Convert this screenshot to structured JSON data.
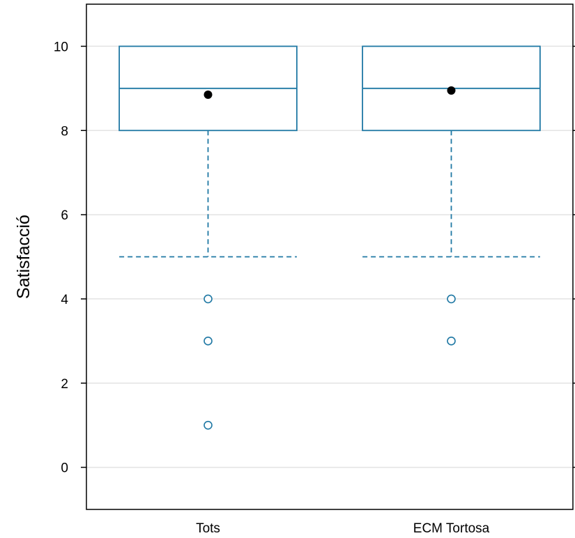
{
  "chart_data": {
    "type": "boxplot",
    "title": "",
    "xlabel": "",
    "ylabel": "Satisfacció",
    "ylim": [
      -1,
      11
    ],
    "yticks": [
      0,
      2,
      4,
      6,
      8,
      10
    ],
    "grid": true,
    "categories": [
      "Tots",
      "ECM Tortosa"
    ],
    "boxes": [
      {
        "category": "Tots",
        "whisker_low": 5,
        "q1": 8,
        "median": 9,
        "q3": 10,
        "whisker_high": 10,
        "mean": 8.85,
        "outliers": [
          4,
          3,
          1
        ]
      },
      {
        "category": "ECM Tortosa",
        "whisker_low": 5,
        "q1": 8,
        "median": 9,
        "q3": 10,
        "whisker_high": 10,
        "mean": 8.95,
        "outliers": [
          4,
          3
        ]
      }
    ],
    "colors": {
      "box": "#1f78a4",
      "mean": "#000000",
      "grid": "#e3e3e3",
      "axis": "#000000"
    }
  }
}
